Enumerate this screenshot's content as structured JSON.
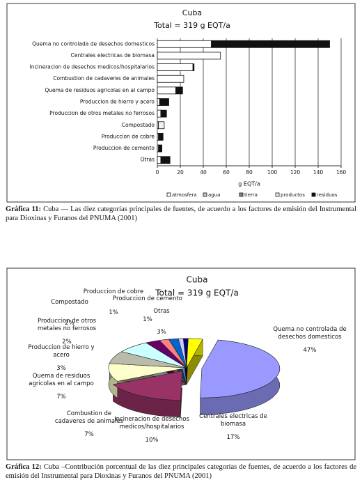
{
  "chart_data": [
    {
      "type": "hbar-stacked",
      "title": "Cuba",
      "subtitle": "Total = 319 g EQT/a",
      "x_label": "g EQT/a",
      "categories": [
        "Quema no controlada de desechos domesticos",
        "Centrales electricas de biomasa",
        "Incineracion de desechos medicos/hospitalarios",
        "Combustion de cadaveres de animales",
        "Quema de residuos agricolas en al campo",
        "Produccion de hierro y acero",
        "Produccion de otros metales no ferrosos",
        "Compostado",
        "Produccion de cobre",
        "Produccion de cemento",
        "Otras"
      ],
      "series": [
        {
          "name": "atmosfera",
          "color": "#ffffff",
          "values": [
            47,
            55,
            31,
            23,
            16,
            2,
            3,
            1,
            1,
            1,
            3
          ]
        },
        {
          "name": "agua",
          "color": "#c8c8c8",
          "values": [
            0,
            0,
            0,
            0,
            0,
            0,
            0,
            0,
            0,
            0,
            0
          ]
        },
        {
          "name": "tierra",
          "color": "#808080",
          "values": [
            0,
            0,
            0,
            0,
            0,
            0,
            0,
            0,
            0,
            0,
            0
          ]
        },
        {
          "name": "productos",
          "color": "#f2f2f2",
          "values": [
            0,
            0,
            0,
            0,
            0,
            0,
            0,
            5,
            0,
            0,
            0
          ]
        },
        {
          "name": "residuos",
          "color": "#111111",
          "values": [
            103,
            0,
            1,
            0,
            6,
            8,
            5,
            0,
            4,
            3,
            8
          ]
        }
      ],
      "xlim": [
        0,
        160
      ],
      "xticks": [
        0,
        20,
        40,
        60,
        80,
        100,
        120,
        140,
        160
      ],
      "grid": true
    },
    {
      "type": "pie3d",
      "title": "Cuba",
      "subtitle": "Total = 319 g EQT/a",
      "categories": [
        "Quema no controlada de desechos domesticos",
        "Centrales electricas de biomasa",
        "Incineracion de desechos medicos/hospitalarios",
        "Combustion de cadaveres de animales",
        "Quema de residuos agricolas en al campo",
        "Produccion de hierro y acero",
        "Produccion de otros metales no ferrosos",
        "Compostado",
        "Produccion de cobre",
        "Produccion de cemento",
        "Otras"
      ],
      "values": [
        47,
        17,
        10,
        7,
        7,
        3,
        2,
        2,
        1,
        1,
        3
      ],
      "value_labels": [
        "47%",
        "17%",
        "10%",
        "7%",
        "7%",
        "3%",
        "2%",
        "2%",
        "1%",
        "1%",
        "3%"
      ],
      "colors": [
        "#9999ff",
        "#993366",
        "#ffffcc",
        "#b8bca8",
        "#ccffff",
        "#660066",
        "#ff8080",
        "#0066cc",
        "#ccccff",
        "#000080",
        "#ffff00"
      ]
    }
  ],
  "captions": [
    {
      "label": "Gráfica 11:",
      "text": "Cuba — Las diez categorías principales de fuentes, de acuerdo a los factores de emisión del Instrumental para Dioxinas y Furanos del PNUMA (2001)"
    },
    {
      "label": "Gráfica 12:",
      "text": "Cuba –Contribución porcentual de las diez principales categorías de fuentes, de acuerdo a los factores de emisión del Instrumental para Dioxinas y Furanos del PNUMA (2001)"
    }
  ]
}
